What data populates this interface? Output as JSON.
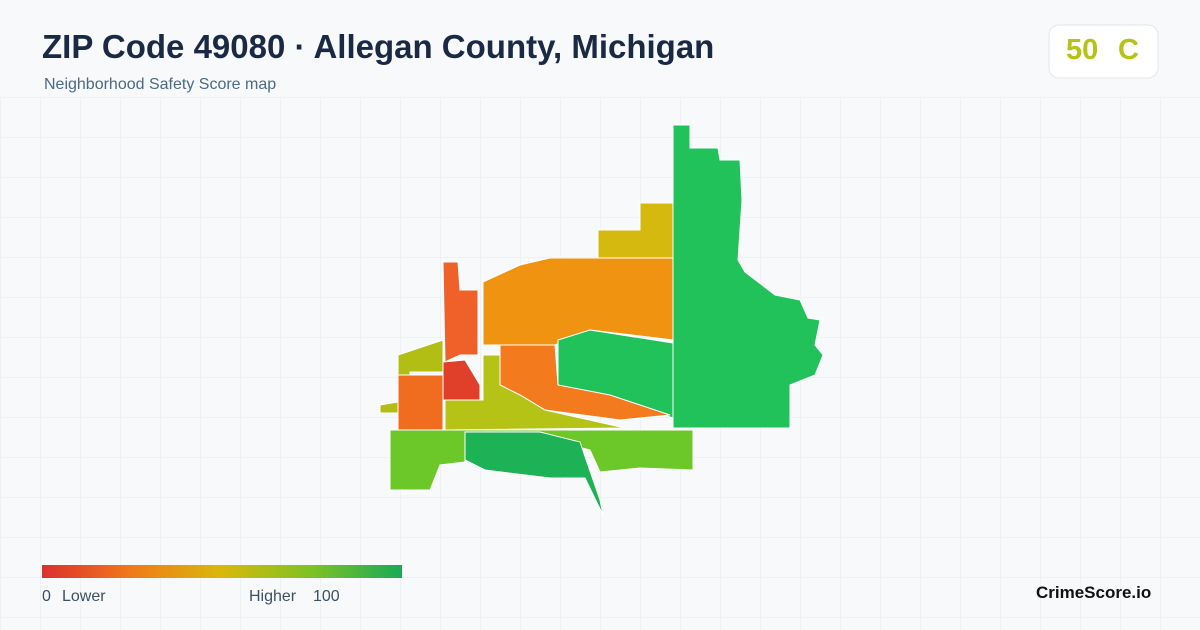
{
  "header": {
    "title": "ZIP Code 49080 · Allegan County, Michigan",
    "subtitle": "Neighborhood Safety Score map"
  },
  "score": {
    "value": "50",
    "grade": "C"
  },
  "legend": {
    "min": "0",
    "min_label": "Lower",
    "max_label": "Higher",
    "max": "100"
  },
  "brand": "CrimeScore.io"
}
